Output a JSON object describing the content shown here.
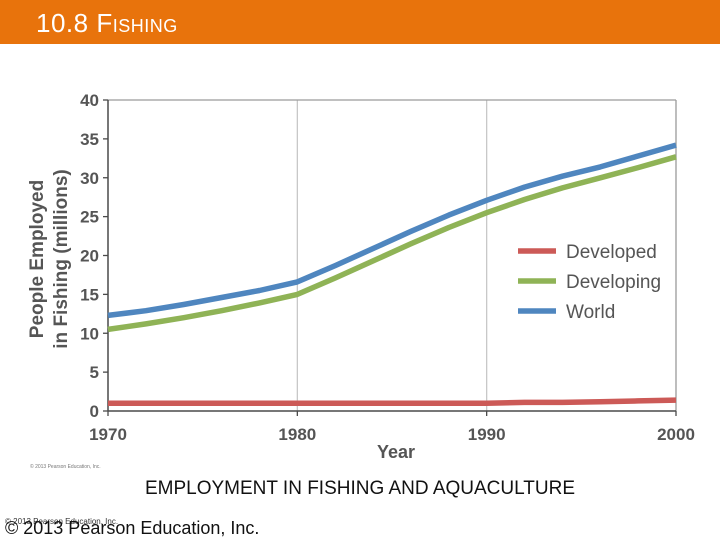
{
  "header": {
    "title": "10.8 Fishing",
    "background_color": "#e8730c",
    "text_color": "#ffffff"
  },
  "caption": "EMPLOYMENT IN FISHING AND AQUACULTURE",
  "footer": {
    "copyright_small": "© 2013 Pearson Education, Inc.",
    "copyright_large": "© 2013 Pearson Education, Inc."
  },
  "chart_data": {
    "type": "line",
    "title": "",
    "xlabel": "Year",
    "ylabel": "People Employed in Fishing (millions)",
    "ylabel_lines": [
      "People Employed",
      "in Fishing (millions)"
    ],
    "xlim": [
      1970,
      2000
    ],
    "ylim": [
      0,
      40
    ],
    "xticks": [
      1970,
      1980,
      1990,
      2000
    ],
    "yticks": [
      0,
      5,
      10,
      15,
      20,
      25,
      30,
      35,
      40
    ],
    "grid": "vertical",
    "legend_position": "right",
    "source_note": "© 2013 Pearson Education, Inc.",
    "x": [
      1970,
      1972,
      1974,
      1976,
      1978,
      1980,
      1982,
      1984,
      1986,
      1988,
      1990,
      1992,
      1994,
      1996,
      1998,
      2000
    ],
    "series": [
      {
        "name": "Developed",
        "color": "#cc5a57",
        "values": [
          1.0,
          1.0,
          1.0,
          1.0,
          1.0,
          1.0,
          1.0,
          1.0,
          1.0,
          1.0,
          1.0,
          1.1,
          1.1,
          1.2,
          1.3,
          1.4
        ]
      },
      {
        "name": "Developing",
        "color": "#8fb356",
        "values": [
          10.5,
          11.2,
          12.0,
          12.9,
          13.9,
          15.0,
          17.1,
          19.3,
          21.5,
          23.6,
          25.5,
          27.2,
          28.7,
          30.0,
          31.3,
          32.7
        ]
      },
      {
        "name": "World",
        "color": "#4f86bf",
        "values": [
          12.3,
          12.9,
          13.7,
          14.6,
          15.5,
          16.6,
          18.7,
          20.9,
          23.1,
          25.2,
          27.1,
          28.8,
          30.2,
          31.4,
          32.8,
          34.2
        ]
      }
    ]
  }
}
